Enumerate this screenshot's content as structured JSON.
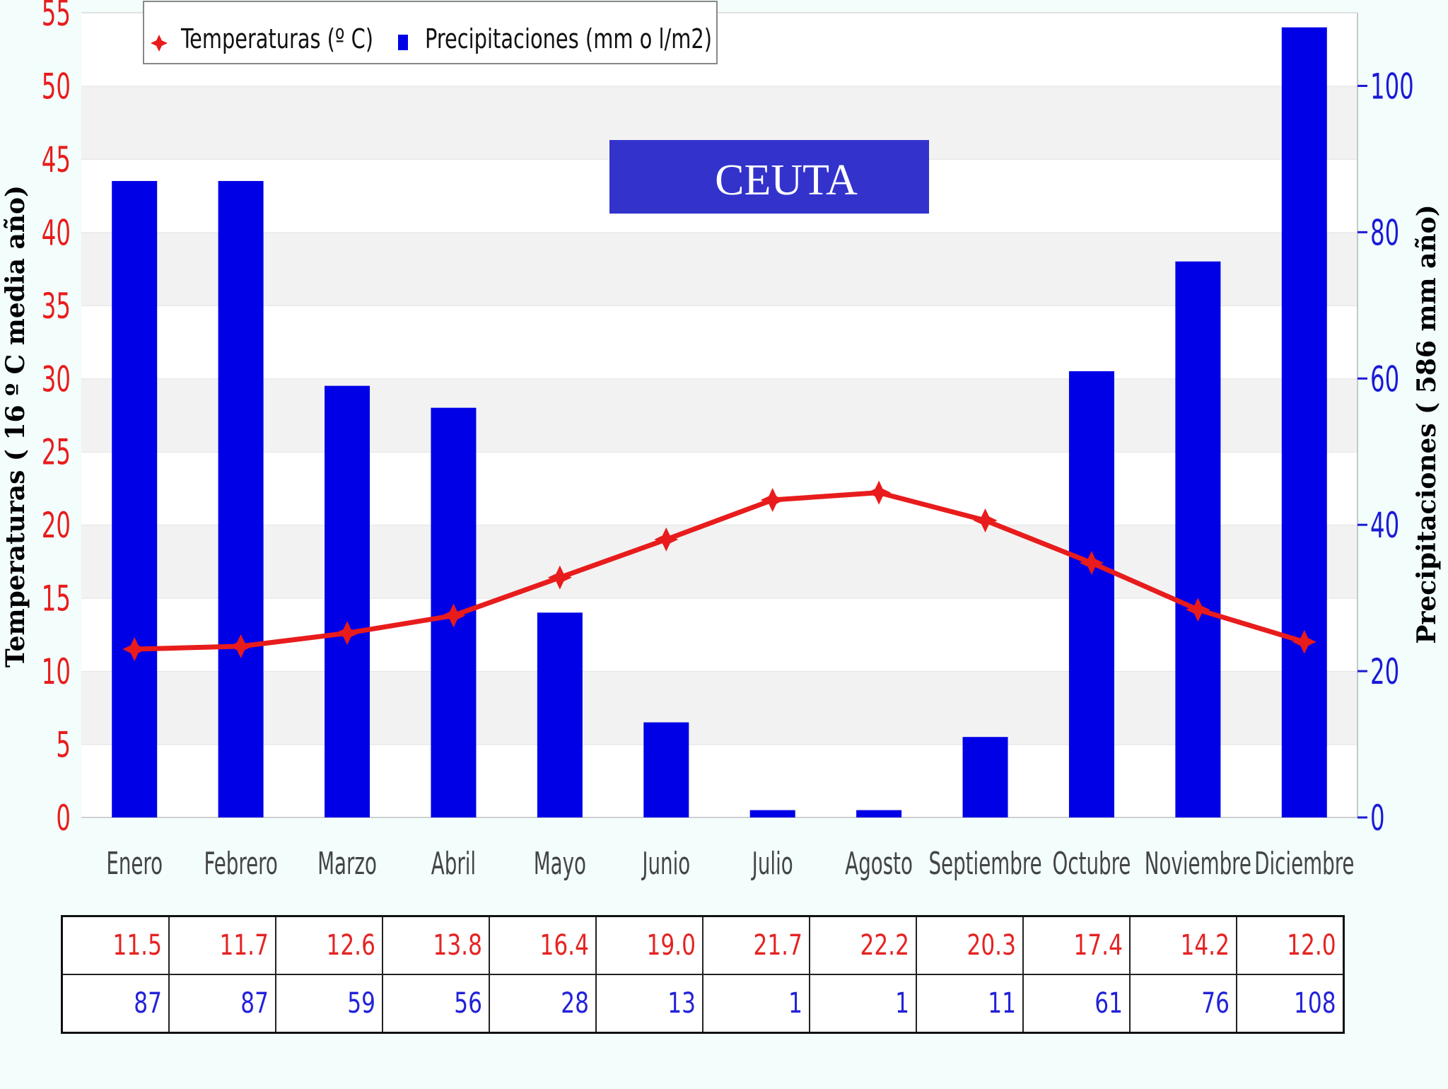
{
  "chart_data": {
    "type": "bar+line",
    "title": "CEUTA",
    "title_box_color": "#3333cc",
    "categories": [
      "Enero",
      "Febrero",
      "Marzo",
      "Abril",
      "Mayo",
      "Junio",
      "Julio",
      "Agosto",
      "Septiembre",
      "Octubre",
      "Noviembre",
      "Diciembre"
    ],
    "series": [
      {
        "name": "Temperaturas (º C)",
        "type": "line",
        "axis": "left",
        "color": "#e81c1c",
        "values": [
          11.5,
          11.7,
          12.6,
          13.8,
          16.4,
          19.0,
          21.7,
          22.2,
          20.3,
          17.4,
          14.2,
          12.0
        ]
      },
      {
        "name": "Precipitaciones (mm o l/m2)",
        "type": "bar",
        "axis": "right",
        "color": "#0000e6",
        "values": [
          87,
          87,
          59,
          56,
          28,
          13,
          1,
          1,
          11,
          61,
          76,
          108
        ]
      }
    ],
    "y_left": {
      "label": "Temperaturas ( 16 º C media año)",
      "ylim": [
        0,
        55
      ],
      "ticks": [
        0,
        5,
        10,
        15,
        20,
        25,
        30,
        35,
        40,
        45,
        50,
        55
      ],
      "color": "#e81c1c"
    },
    "y_right": {
      "label": "Precipitaciones ( 586 mm año)",
      "ylim": [
        0,
        110
      ],
      "ticks": [
        0,
        20,
        40,
        60,
        80,
        100
      ],
      "color": "#1a1ad6"
    },
    "legend_position": "top-left",
    "grid": "horizontal bands"
  },
  "table": {
    "temperature_row": [
      "11.5",
      "11.7",
      "12.6",
      "13.8",
      "16.4",
      "19.0",
      "21.7",
      "22.2",
      "20.3",
      "17.4",
      "14.2",
      "12.0"
    ],
    "precipitation_row": [
      "87",
      "87",
      "59",
      "56",
      "28",
      "13",
      "1",
      "1",
      "11",
      "61",
      "76",
      "108"
    ]
  }
}
